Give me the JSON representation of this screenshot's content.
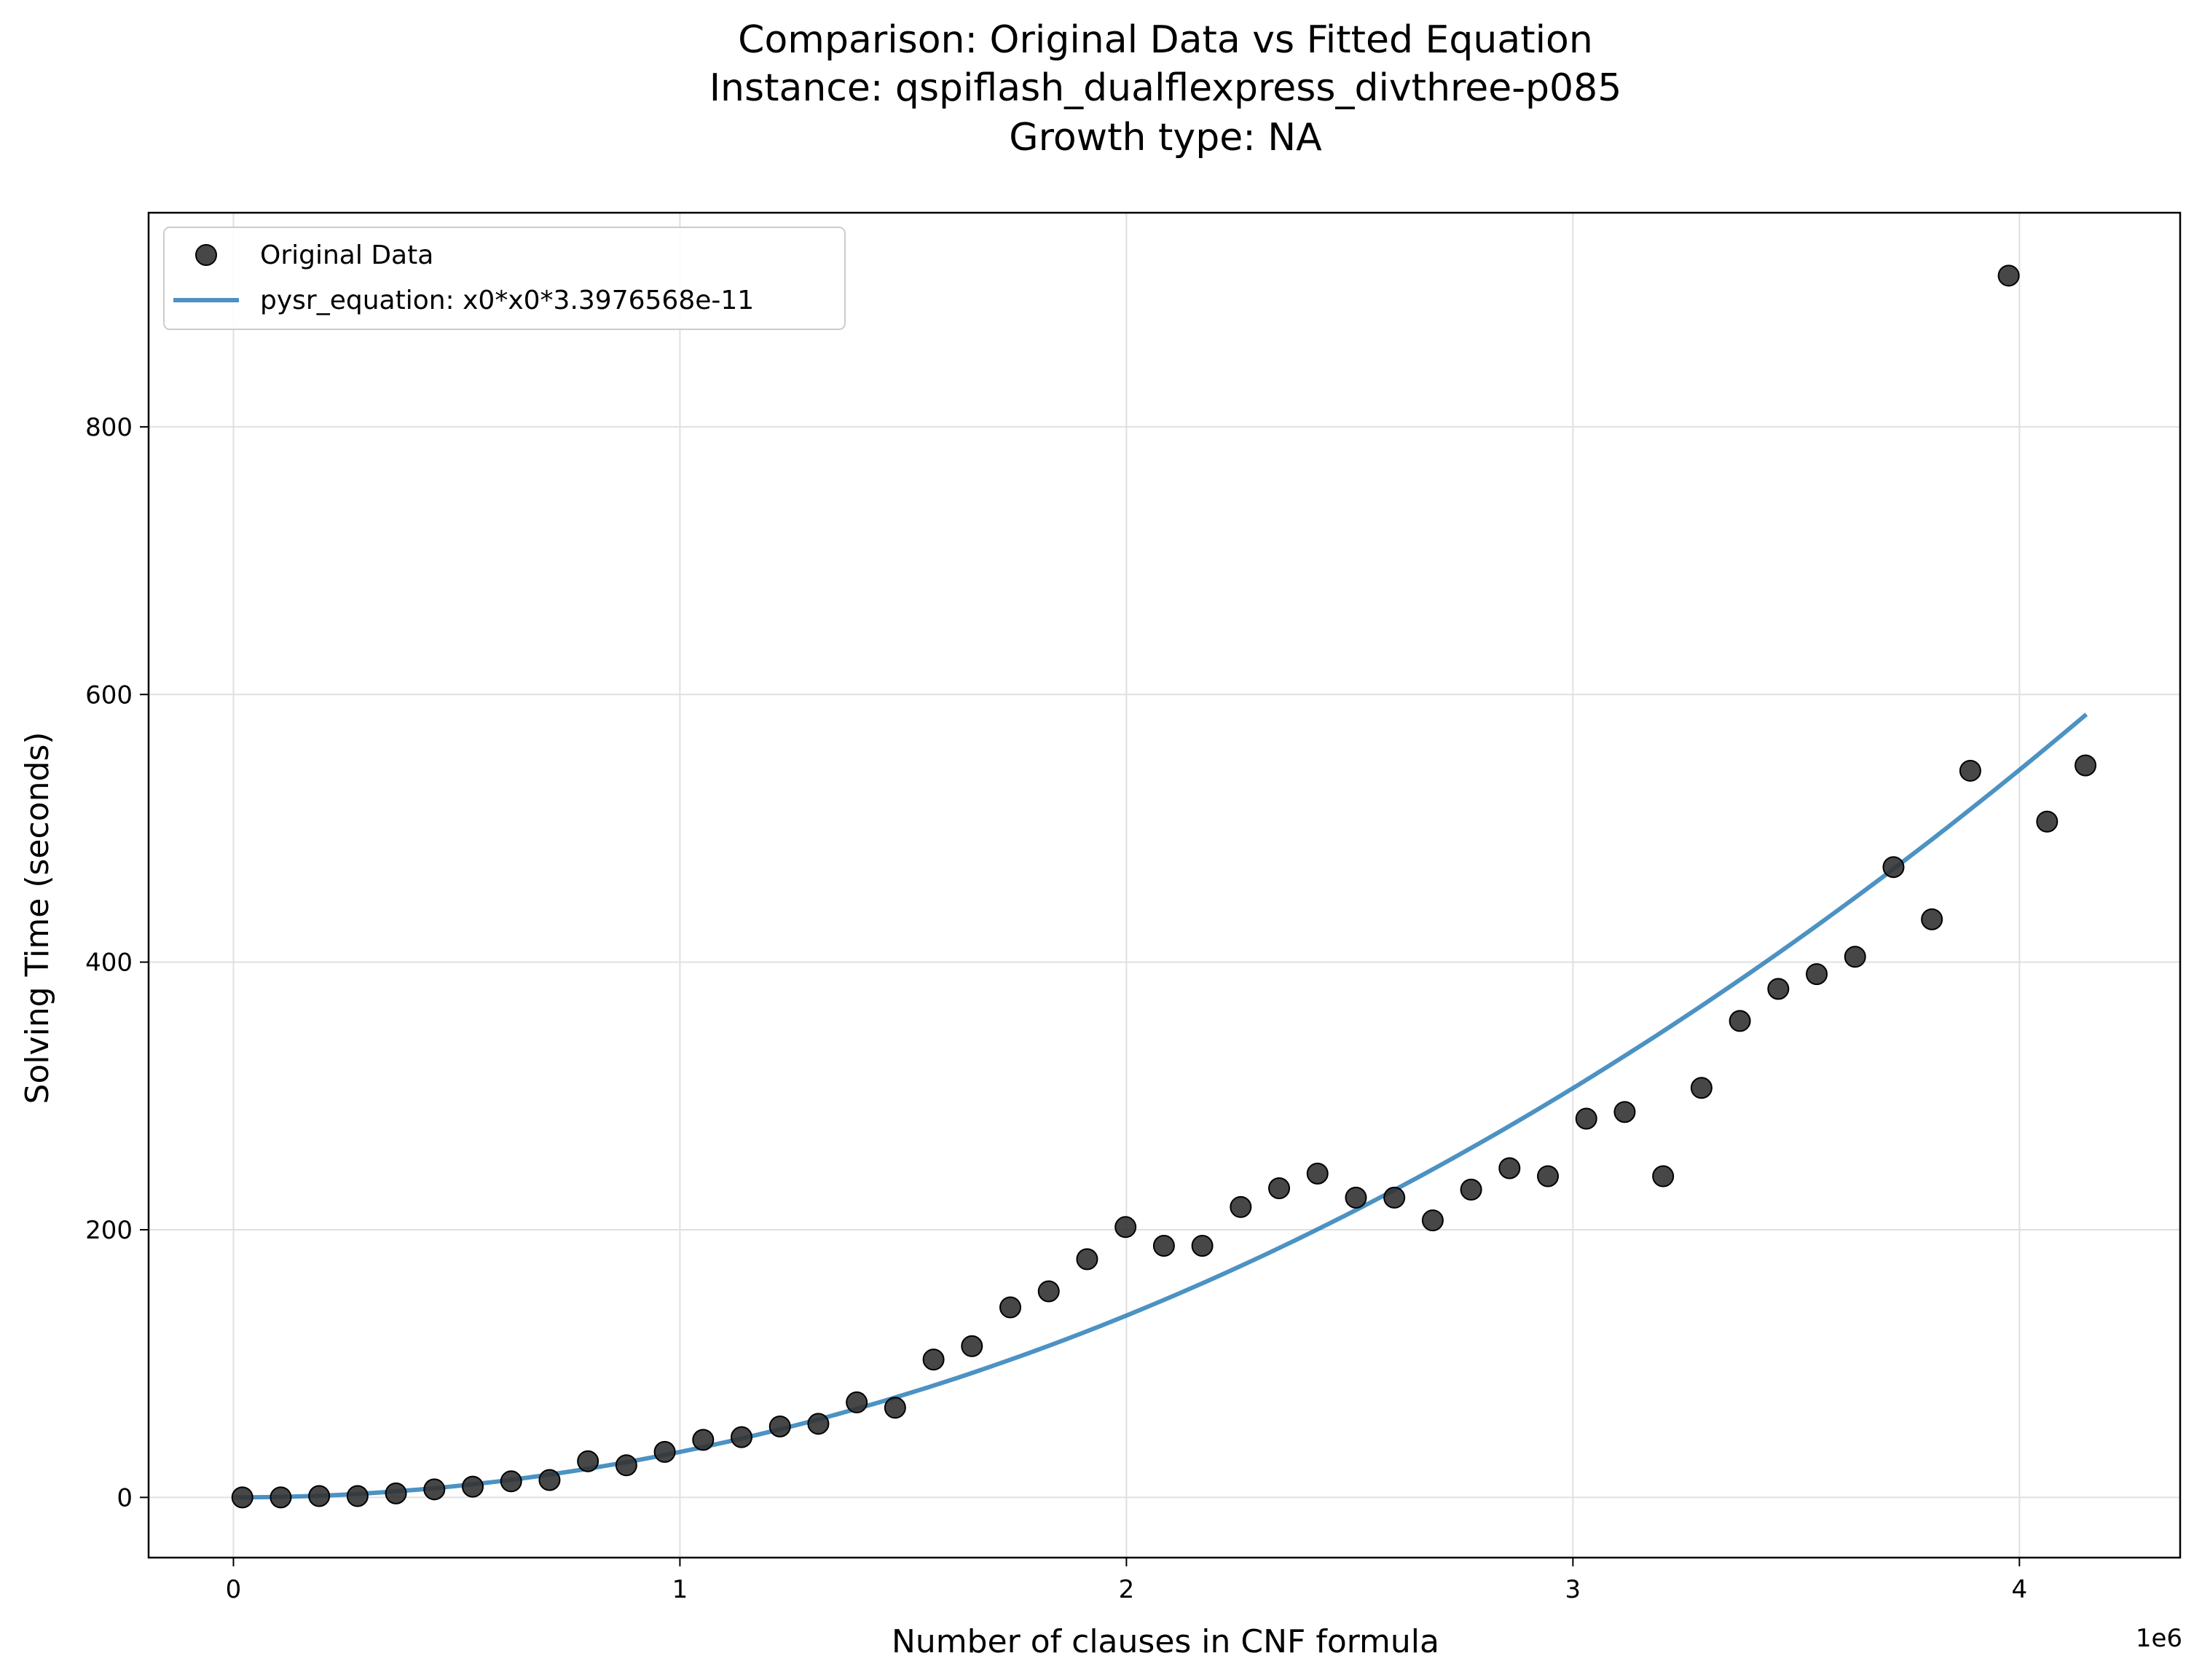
{
  "chart_data": {
    "type": "scatter",
    "title_lines": [
      "Comparison: Original Data vs Fitted Equation",
      "Instance: qspiflash_dualflexpress_divthree-p085",
      "Growth type: NA"
    ],
    "xlabel": "Number of clauses in CNF formula",
    "ylabel": "Solving Time (seconds)",
    "x_offset_label": "1e6",
    "x_scale_factor": 1000000,
    "xlim": [
      -190000,
      4360000
    ],
    "ylim": [
      -45,
      960
    ],
    "xticks": [
      0,
      1000000,
      2000000,
      3000000,
      4000000
    ],
    "xtick_labels": [
      "0",
      "1",
      "2",
      "3",
      "4"
    ],
    "yticks": [
      0,
      200,
      400,
      600,
      800
    ],
    "ytick_labels": [
      "0",
      "200",
      "400",
      "600",
      "800"
    ],
    "grid": true,
    "legend_position": "top-left",
    "legend": {
      "scatter_label": "Original Data",
      "line_label": "pysr_equation: x0*x0*3.3976568e-11"
    },
    "colors": {
      "points": "#333333",
      "line": "#1f77b4",
      "grid": "#e0e0e0"
    },
    "series": [
      {
        "name": "Original Data",
        "kind": "scatter",
        "x": [
          20000,
          106000,
          192000,
          278000,
          364000,
          450000,
          536000,
          622000,
          708000,
          794000,
          880000,
          966000,
          1052000,
          1138000,
          1224000,
          1310000,
          1396000,
          1482000,
          1568000,
          1654000,
          1740000,
          1826000,
          1912000,
          1998000,
          2084000,
          2170000,
          2256000,
          2342000,
          2428000,
          2514000,
          2600000,
          2686000,
          2772000,
          2858000,
          2944000,
          3030000,
          3116000,
          3202000,
          3288000,
          3374000,
          3460000,
          3546000,
          3632000,
          3718000,
          3804000,
          3890000,
          3976000,
          4062000,
          4148000
        ],
        "y": [
          0,
          0,
          1,
          1,
          3,
          6,
          8,
          12,
          13,
          27,
          24,
          34,
          43,
          45,
          53,
          55,
          71,
          67,
          103,
          113,
          142,
          154,
          178,
          202,
          188,
          188,
          217,
          231,
          242,
          224,
          224,
          207,
          230,
          246,
          240,
          283,
          288,
          240,
          306,
          356,
          380,
          391,
          404,
          471,
          432,
          543,
          913,
          505,
          547
        ]
      },
      {
        "name": "pysr_equation: x0*x0*3.3976568e-11",
        "kind": "line",
        "coefficient": 3.3976568e-11,
        "x_range": [
          0,
          4150000
        ]
      }
    ]
  }
}
